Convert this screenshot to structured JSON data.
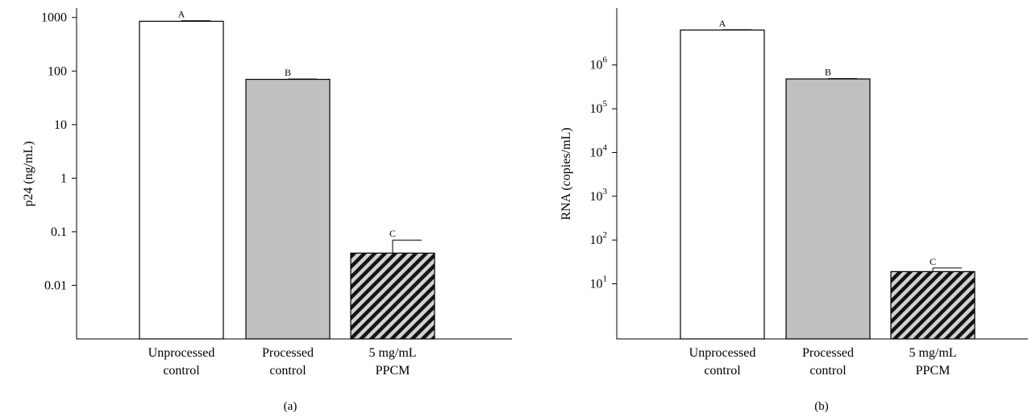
{
  "chart_data": [
    {
      "type": "bar",
      "panel_label": "(a)",
      "ylabel": "p24 (ng/mL)",
      "yscale": "log",
      "ylim": [
        0.001,
        1500
      ],
      "yticks": [
        {
          "value": 0.01,
          "label": "0.01"
        },
        {
          "value": 0.1,
          "label": "0.1"
        },
        {
          "value": 1,
          "label": "1"
        },
        {
          "value": 10,
          "label": "10"
        },
        {
          "value": 100,
          "label": "100"
        },
        {
          "value": 1000,
          "label": "1000"
        }
      ],
      "categories": [
        [
          "Unprocessed",
          "control"
        ],
        [
          "Processed",
          "control"
        ],
        [
          "5 mg/mL",
          "PPCM"
        ]
      ],
      "values": [
        850,
        70,
        0.04
      ],
      "error_upper": [
        870,
        71,
        0.07
      ],
      "significance": [
        "A",
        "B",
        "C"
      ],
      "fills": [
        "white",
        "gray",
        "hatched"
      ]
    },
    {
      "type": "bar",
      "panel_label": "(b)",
      "ylabel": "RNA (copies/mL)",
      "yscale": "log",
      "ylim": [
        0.55,
        20000000
      ],
      "yticks": [
        {
          "value": 10,
          "base": "10",
          "exp": "1"
        },
        {
          "value": 100,
          "base": "10",
          "exp": "2"
        },
        {
          "value": 1000,
          "base": "10",
          "exp": "3"
        },
        {
          "value": 10000,
          "base": "10",
          "exp": "4"
        },
        {
          "value": 100000,
          "base": "10",
          "exp": "5"
        },
        {
          "value": 1000000,
          "base": "10",
          "exp": "6"
        }
      ],
      "categories": [
        [
          "Unprocessed",
          "control"
        ],
        [
          "Processed",
          "control"
        ],
        [
          "5 mg/mL",
          "PPCM"
        ]
      ],
      "values": [
        6300000,
        480000,
        19
      ],
      "error_upper": [
        6400000,
        490000,
        23
      ],
      "significance": [
        "A",
        "B",
        "C"
      ],
      "fills": [
        "white",
        "gray",
        "hatched"
      ]
    }
  ]
}
